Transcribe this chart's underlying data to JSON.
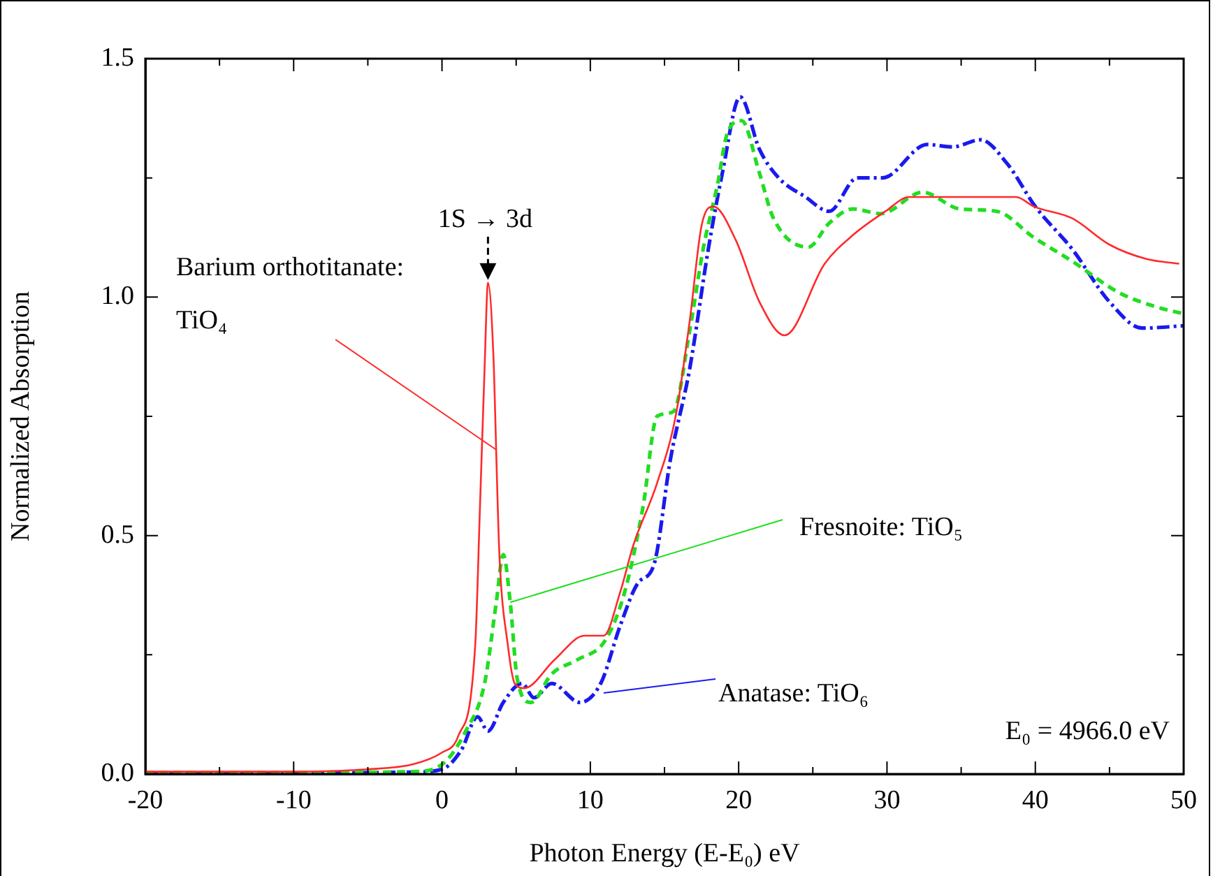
{
  "chart_data": {
    "type": "line",
    "xlabel": "Photon Energy (E-E₀) eV",
    "ylabel": "Normalized Absorption",
    "xlim": [
      -20,
      50
    ],
    "xticks": [
      -20,
      {
        "value": -15,
        "label": null
      },
      -10,
      {
        "value": -5,
        "label": null
      },
      0,
      {
        "value": 5,
        "label": null
      },
      10,
      {
        "value": 15,
        "label": null
      },
      20,
      {
        "value": 25,
        "label": null
      },
      30,
      {
        "value": 35,
        "label": null
      },
      40,
      {
        "value": 45,
        "label": null
      },
      50
    ],
    "ylim": [
      0,
      1.5
    ],
    "yticks": [
      {
        "value": 0,
        "label": "0.0"
      },
      {
        "value": 0.25,
        "label": null
      },
      {
        "value": 0.5,
        "label": "0.5"
      },
      {
        "value": 0.75,
        "label": null
      },
      {
        "value": 1,
        "label": "1.0"
      },
      {
        "value": 1.25,
        "label": null
      },
      {
        "value": 1.5,
        "label": "1.5"
      }
    ],
    "grid": false,
    "legend": false,
    "marker": "none",
    "series": [
      {
        "color": "#ff2a2a",
        "line_style": "solid",
        "x": [
          -20,
          -10,
          -5,
          -2,
          0,
          1.1,
          2.24,
          2.56,
          2.87,
          3.1,
          3.5,
          3.65,
          3.87,
          4.44,
          4.9,
          5.54,
          7.6,
          9.6,
          10.9,
          12.0,
          12.9,
          14.5,
          15.75,
          16.7,
          17.5,
          18.3,
          19.8,
          21.4,
          23.1,
          25.8,
          27.7,
          29.9,
          31.5,
          38.7,
          39.9,
          42.5,
          45,
          47.5,
          49.7
        ],
        "values": [
          0.005,
          0.005,
          0.01,
          0.02,
          0.045,
          0.08,
          0.27,
          0.56,
          0.85,
          1.03,
          0.85,
          0.68,
          0.46,
          0.27,
          0.19,
          0.18,
          0.24,
          0.29,
          0.29,
          0.38,
          0.48,
          0.61,
          0.75,
          0.95,
          1.15,
          1.19,
          1.12,
          0.99,
          0.92,
          1.07,
          1.13,
          1.18,
          1.21,
          1.21,
          1.19,
          1.165,
          1.11,
          1.08,
          1.07
        ]
      },
      {
        "color": "#22dd22",
        "line_style": "dashed",
        "x": [
          -20,
          -10,
          -2,
          0,
          1.6,
          2.87,
          3.66,
          4.13,
          4.6,
          5.07,
          6.0,
          7.4,
          9.15,
          11.0,
          12.3,
          13.55,
          14.5,
          15.6,
          16.7,
          17.6,
          18.6,
          19.2,
          20.2,
          21.4,
          22.35,
          24.7,
          26.1,
          27.7,
          29.6,
          32.4,
          34.9,
          37.4,
          39.9,
          42.5,
          45.6,
          48.1,
          50
        ],
        "values": [
          0.003,
          0.003,
          0.005,
          0.02,
          0.09,
          0.19,
          0.36,
          0.46,
          0.36,
          0.2,
          0.15,
          0.21,
          0.24,
          0.28,
          0.38,
          0.56,
          0.75,
          0.76,
          0.93,
          1.1,
          1.24,
          1.34,
          1.37,
          1.26,
          1.165,
          1.105,
          1.155,
          1.185,
          1.175,
          1.22,
          1.185,
          1.18,
          1.125,
          1.075,
          1.01,
          0.98,
          0.965
        ]
      },
      {
        "color": "#1a1aee",
        "line_style": "dashdot",
        "x": [
          -20,
          -10,
          -2,
          0,
          1.3,
          2.4,
          3.1,
          4.13,
          5.4,
          6.2,
          7.4,
          9.3,
          10.7,
          12.0,
          13.2,
          14.3,
          15.4,
          16.7,
          17.95,
          18.9,
          20.1,
          21.4,
          22.7,
          24.5,
          26.1,
          28.0,
          29.7,
          32.7,
          34.45,
          36.3,
          38.1,
          40.0,
          42.5,
          45.0,
          47.2,
          50
        ],
        "values": [
          0.002,
          0.002,
          0.004,
          0.01,
          0.05,
          0.12,
          0.09,
          0.15,
          0.19,
          0.16,
          0.19,
          0.15,
          0.19,
          0.31,
          0.4,
          0.44,
          0.66,
          0.85,
          1.1,
          1.26,
          1.42,
          1.31,
          1.25,
          1.21,
          1.18,
          1.25,
          1.25,
          1.32,
          1.315,
          1.33,
          1.28,
          1.19,
          1.1,
          0.99,
          0.935,
          0.94
        ]
      }
    ],
    "annotations": [
      {
        "text": "1S → 3d",
        "x": 3.1,
        "y": 1.03
      },
      {
        "text": "Barium orthotitanate: TiO₄",
        "x": 3.65,
        "y": 0.68
      },
      {
        "text": "Fresnoite: TiO₅",
        "x": 4.6,
        "y": 0.36
      },
      {
        "text": "Anatase: TiO₆",
        "x": 10.9,
        "y": 0.17
      },
      "E₀ = 4966.0 eV"
    ]
  }
}
